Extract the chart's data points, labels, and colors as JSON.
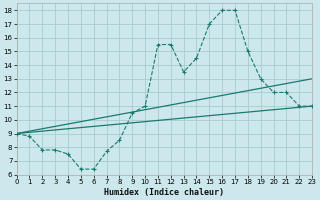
{
  "xlabel": "Humidex (Indice chaleur)",
  "bg_color": "#cce8ec",
  "grid_color": "#aacccc",
  "line_color": "#1a7a6e",
  "xmin": 0,
  "xmax": 23,
  "ymin": 6,
  "ymax": 18.5,
  "x_ticks": [
    0,
    1,
    2,
    3,
    4,
    5,
    6,
    7,
    8,
    9,
    10,
    11,
    12,
    13,
    14,
    15,
    16,
    17,
    18,
    19,
    20,
    21,
    22,
    23
  ],
  "y_ticks": [
    6,
    7,
    8,
    9,
    10,
    11,
    12,
    13,
    14,
    15,
    16,
    17,
    18
  ],
  "series1_x": [
    0,
    1,
    2,
    3,
    4,
    5,
    6,
    7,
    8,
    9,
    10,
    11,
    12,
    13,
    14,
    15,
    16,
    17,
    18,
    19,
    20,
    21,
    22,
    23
  ],
  "series1_y": [
    9.0,
    8.8,
    7.8,
    7.8,
    7.5,
    6.4,
    6.4,
    7.7,
    8.5,
    10.5,
    11.0,
    15.5,
    15.5,
    13.5,
    14.5,
    17.0,
    18.0,
    18.0,
    15.0,
    13.0,
    12.0,
    12.0,
    11.0,
    11.0
  ],
  "series2_x": [
    0,
    23
  ],
  "series2_y": [
    9.0,
    13.0
  ],
  "series3_x": [
    0,
    23
  ],
  "series3_y": [
    9.0,
    11.0
  ],
  "tick_fontsize": 5.0,
  "xlabel_fontsize": 6.0
}
